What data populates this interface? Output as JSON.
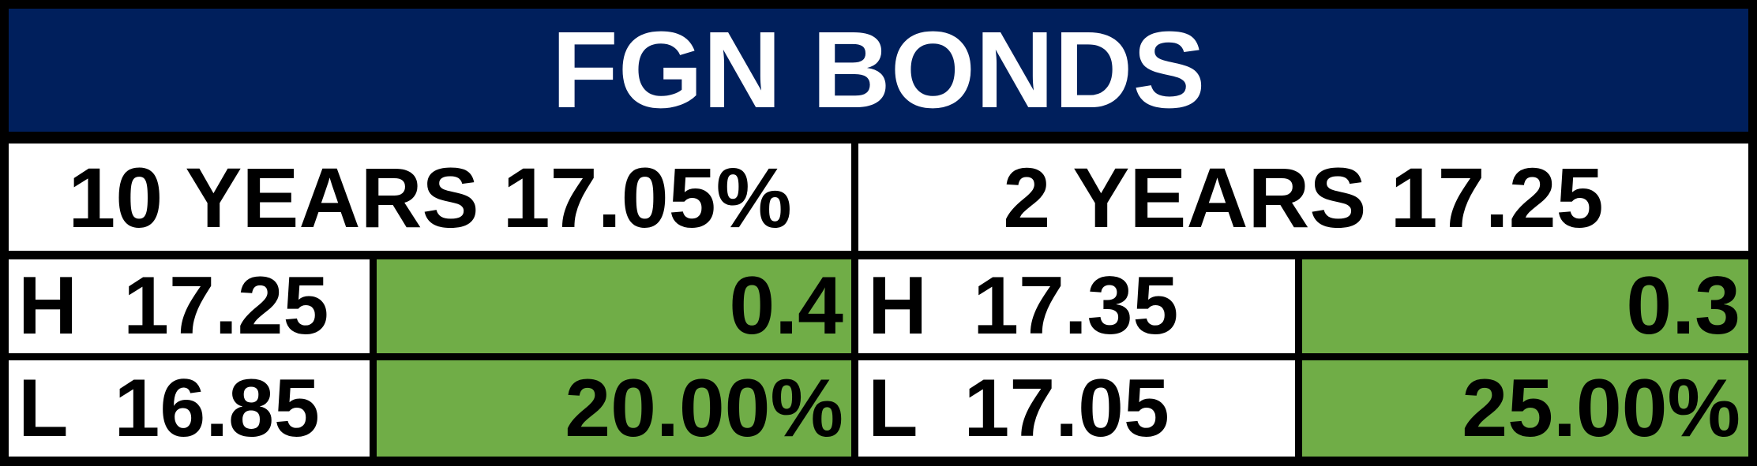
{
  "title": "FGN BONDS",
  "panels": [
    {
      "heading": "10 YEARS 17.05%",
      "high_label": "H",
      "high": "17.25",
      "high_change": "0.4",
      "low_label": "L",
      "low": "16.85",
      "low_change": "20.00%"
    },
    {
      "heading": "2 YEARS 17.25",
      "high_label": "H",
      "high": "17.35",
      "high_change": "0.3",
      "low_label": "L",
      "low": "17.05",
      "low_change": "25.00%"
    }
  ]
}
